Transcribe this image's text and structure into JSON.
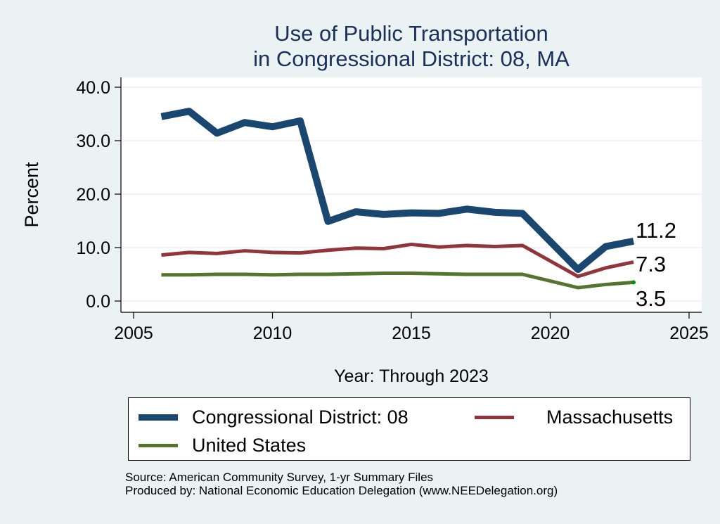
{
  "chart_data": {
    "type": "line",
    "title": "Use of Public Transportation\nin Congressional District: 08, MA",
    "title_lines": [
      "Use of Public Transportation",
      "in Congressional District: 08, MA"
    ],
    "xlabel": "Year: Through 2023",
    "ylabel": "Percent",
    "xlim": [
      2005,
      2025
    ],
    "ylim": [
      0,
      40
    ],
    "xticks": [
      "2005",
      "2010",
      "2015",
      "2020",
      "2025"
    ],
    "yticks": [
      "0.0",
      "10.0",
      "20.0",
      "30.0",
      "40.0"
    ],
    "grid": true,
    "legend_position": "bottom",
    "x": [
      2006,
      2007,
      2008,
      2009,
      2010,
      2011,
      2012,
      2013,
      2014,
      2015,
      2016,
      2017,
      2018,
      2019,
      2021,
      2022,
      2023
    ],
    "series": [
      {
        "name": "Congressional District: 08",
        "color": "#1a476f",
        "values": [
          34.5,
          35.5,
          31.4,
          33.4,
          32.6,
          33.7,
          14.9,
          16.7,
          16.2,
          16.5,
          16.4,
          17.2,
          16.6,
          16.4,
          5.9,
          10.2,
          11.2
        ],
        "end_label": "11.2"
      },
      {
        "name": "Massachusetts",
        "color": "#90353b",
        "values": [
          8.6,
          9.1,
          8.9,
          9.4,
          9.1,
          9.0,
          9.5,
          9.9,
          9.8,
          10.6,
          10.1,
          10.4,
          10.2,
          10.4,
          4.6,
          6.2,
          7.3
        ],
        "end_label": "7.3"
      },
      {
        "name": "United States",
        "color": "#55752f",
        "values": [
          4.9,
          4.9,
          5.0,
          5.0,
          4.9,
          5.0,
          5.0,
          5.1,
          5.2,
          5.2,
          5.1,
          5.0,
          5.0,
          5.0,
          2.5,
          3.1,
          3.5
        ],
        "end_label": "3.5"
      }
    ]
  },
  "legend": {
    "items": [
      {
        "label": "Congressional District: 08"
      },
      {
        "label": "Massachusetts"
      },
      {
        "label": "United States"
      }
    ]
  },
  "footer": {
    "source": "Source: American Community Survey, 1-yr Summary Files",
    "produced_by": "Produced by: National Economic Education Delegation (www.NEEDelegation.org)"
  }
}
